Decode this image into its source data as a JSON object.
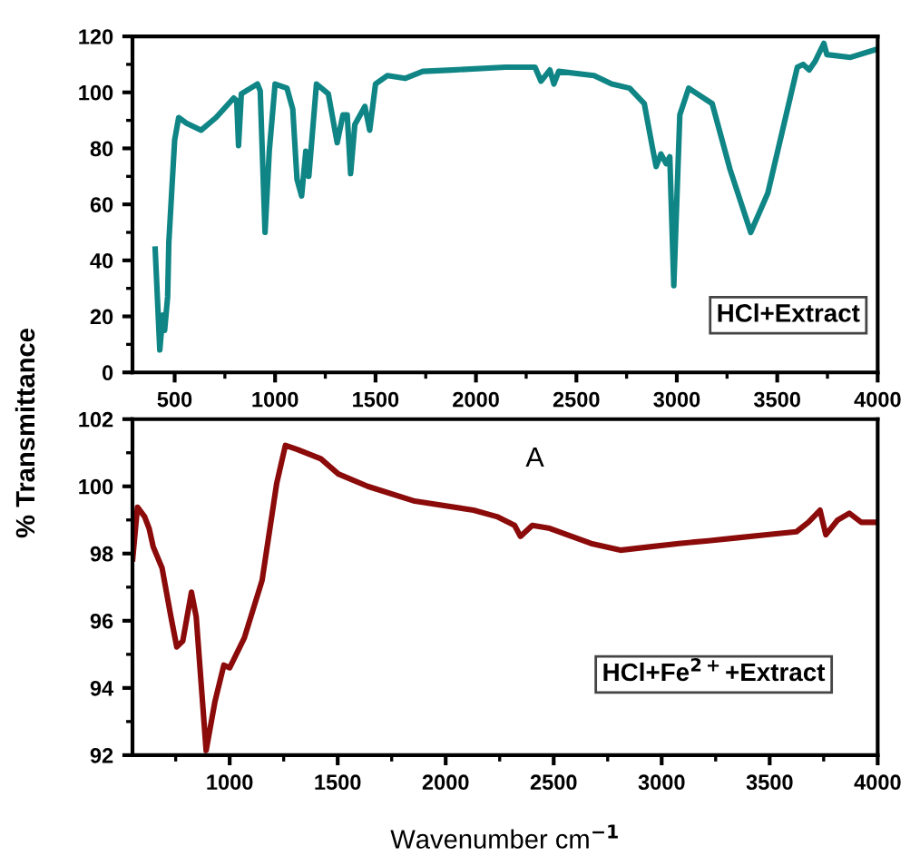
{
  "chart_data": [
    {
      "type": "line",
      "ylabel": "% Transmittance",
      "xlim": [
        290,
        4000
      ],
      "ylim": [
        0,
        120
      ],
      "xticks": [
        500,
        1000,
        1500,
        2000,
        2500,
        3000,
        3500,
        4000
      ],
      "yticks": [
        0,
        20,
        40,
        60,
        80,
        100,
        120
      ],
      "grid": false,
      "legend": false,
      "annotations": [
        "HCl+Extract"
      ],
      "series": [
        {
          "color": "#0f8585",
          "x": [
            403,
            426,
            441,
            450,
            465,
            471,
            500,
            520,
            559,
            632,
            706,
            794,
            809,
            818,
            832,
            912,
            926,
            950,
            971,
            1000,
            1059,
            1088,
            1109,
            1132,
            1153,
            1168,
            1206,
            1265,
            1309,
            1338,
            1359,
            1376,
            1397,
            1447,
            1471,
            1500,
            1559,
            1647,
            1735,
            1882,
            2147,
            2294,
            2324,
            2368,
            2388,
            2412,
            2588,
            2676,
            2765,
            2838,
            2882,
            2897,
            2921,
            2947,
            2965,
            2985,
            3015,
            3059,
            3176,
            3265,
            3368,
            3453,
            3600,
            3629,
            3659,
            3688,
            3732,
            3747,
            3865,
            4000
          ],
          "values": [
            44,
            8,
            20.5,
            15,
            27,
            46.5,
            83,
            91,
            89,
            86.5,
            91,
            98,
            97,
            81,
            99.5,
            103,
            100.5,
            50,
            79,
            103,
            101.5,
            94,
            69,
            63,
            79,
            70,
            103,
            99.5,
            82,
            92,
            92,
            71,
            88.5,
            95,
            86.5,
            103,
            106,
            105,
            107.5,
            108,
            109,
            109,
            104,
            108,
            103,
            107.5,
            106,
            103,
            101.5,
            96,
            79,
            73.5,
            78,
            74.5,
            77,
            31,
            92,
            101.5,
            96,
            72.5,
            50,
            64,
            109,
            110,
            108,
            111,
            117.5,
            113.5,
            112.5,
            115.5
          ]
        }
      ]
    },
    {
      "type": "line",
      "xlabel": "Wavenumber cm$^{−1}$",
      "xlim": [
        550,
        4000
      ],
      "ylim": [
        92,
        102
      ],
      "xticks": [
        1000,
        1500,
        2000,
        2500,
        3000,
        3500,
        4000
      ],
      "yticks": [
        92,
        94,
        96,
        98,
        100,
        102
      ],
      "grid": false,
      "legend": false,
      "annotations": [
        "A",
        "HCl+Fe$^{2+}$+Extract"
      ],
      "series": [
        {
          "color": "#8b0a0a",
          "x": [
            551,
            573,
            606,
            627,
            646,
            687,
            728,
            755,
            783,
            823,
            845,
            891,
            932,
            973,
            1000,
            1068,
            1150,
            1218,
            1258,
            1313,
            1422,
            1503,
            1639,
            1857,
            2129,
            2237,
            2319,
            2346,
            2401,
            2482,
            2673,
            2809,
            2945,
            3080,
            3216,
            3352,
            3488,
            3624,
            3679,
            3733,
            3760,
            3815,
            3869,
            3924,
            4000
          ],
          "values": [
            97.84,
            99.38,
            99.1,
            98.75,
            98.2,
            97.57,
            96.12,
            95.22,
            95.4,
            96.85,
            96.12,
            92.14,
            93.6,
            94.68,
            94.6,
            95.49,
            97.2,
            100.1,
            101.22,
            101.1,
            100.82,
            100.37,
            100.0,
            99.56,
            99.29,
            99.1,
            98.84,
            98.51,
            98.84,
            98.75,
            98.3,
            98.1,
            98.2,
            98.3,
            98.38,
            98.47,
            98.56,
            98.65,
            98.93,
            99.29,
            98.56,
            99.0,
            99.2,
            98.93,
            98.93
          ]
        }
      ]
    }
  ]
}
